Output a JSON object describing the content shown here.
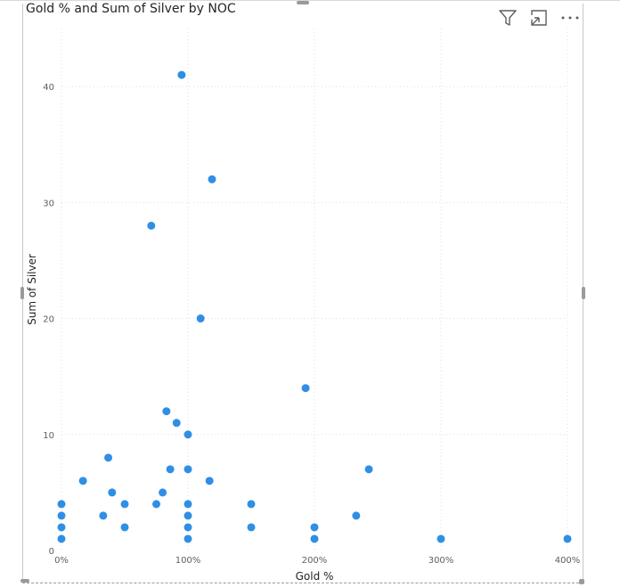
{
  "visual": {
    "title": "Gold % and Sum of Silver by NOC",
    "toolbar": {
      "filter_icon": "filter-icon",
      "focus_icon": "focus-mode-icon",
      "more_icon": "more-options-icon"
    }
  },
  "chart_data": {
    "type": "scatter",
    "title": "Gold % and Sum of Silver by NOC",
    "xlabel": "Gold %",
    "ylabel": "Sum of Silver",
    "xlim": [
      0,
      4
    ],
    "ylim": [
      0,
      45
    ],
    "x_ticks": [
      0,
      1,
      2,
      3,
      4
    ],
    "x_tick_labels": [
      "0%",
      "100%",
      "200%",
      "300%",
      "400%"
    ],
    "y_ticks": [
      0,
      10,
      20,
      30,
      40
    ],
    "y_tick_labels": [
      "0",
      "10",
      "20",
      "30",
      "40"
    ],
    "grid": true,
    "color": "#2f8fe6",
    "points": [
      {
        "x": 0.0,
        "y": 1
      },
      {
        "x": 0.0,
        "y": 2
      },
      {
        "x": 0.0,
        "y": 3
      },
      {
        "x": 0.0,
        "y": 4
      },
      {
        "x": 0.17,
        "y": 6
      },
      {
        "x": 0.33,
        "y": 3
      },
      {
        "x": 0.37,
        "y": 8
      },
      {
        "x": 0.4,
        "y": 5
      },
      {
        "x": 0.5,
        "y": 2
      },
      {
        "x": 0.5,
        "y": 4
      },
      {
        "x": 0.71,
        "y": 28
      },
      {
        "x": 0.75,
        "y": 4
      },
      {
        "x": 0.8,
        "y": 5
      },
      {
        "x": 0.83,
        "y": 12
      },
      {
        "x": 0.86,
        "y": 7
      },
      {
        "x": 0.91,
        "y": 11
      },
      {
        "x": 0.95,
        "y": 41
      },
      {
        "x": 1.0,
        "y": 1
      },
      {
        "x": 1.0,
        "y": 2
      },
      {
        "x": 1.0,
        "y": 3
      },
      {
        "x": 1.0,
        "y": 4
      },
      {
        "x": 1.0,
        "y": 7
      },
      {
        "x": 1.0,
        "y": 10
      },
      {
        "x": 1.1,
        "y": 20
      },
      {
        "x": 1.17,
        "y": 6
      },
      {
        "x": 1.19,
        "y": 32
      },
      {
        "x": 1.5,
        "y": 2
      },
      {
        "x": 1.5,
        "y": 4
      },
      {
        "x": 1.93,
        "y": 14
      },
      {
        "x": 2.0,
        "y": 1
      },
      {
        "x": 2.0,
        "y": 2
      },
      {
        "x": 2.33,
        "y": 3
      },
      {
        "x": 2.43,
        "y": 7
      },
      {
        "x": 3.0,
        "y": 1
      },
      {
        "x": 4.0,
        "y": 1
      }
    ]
  }
}
